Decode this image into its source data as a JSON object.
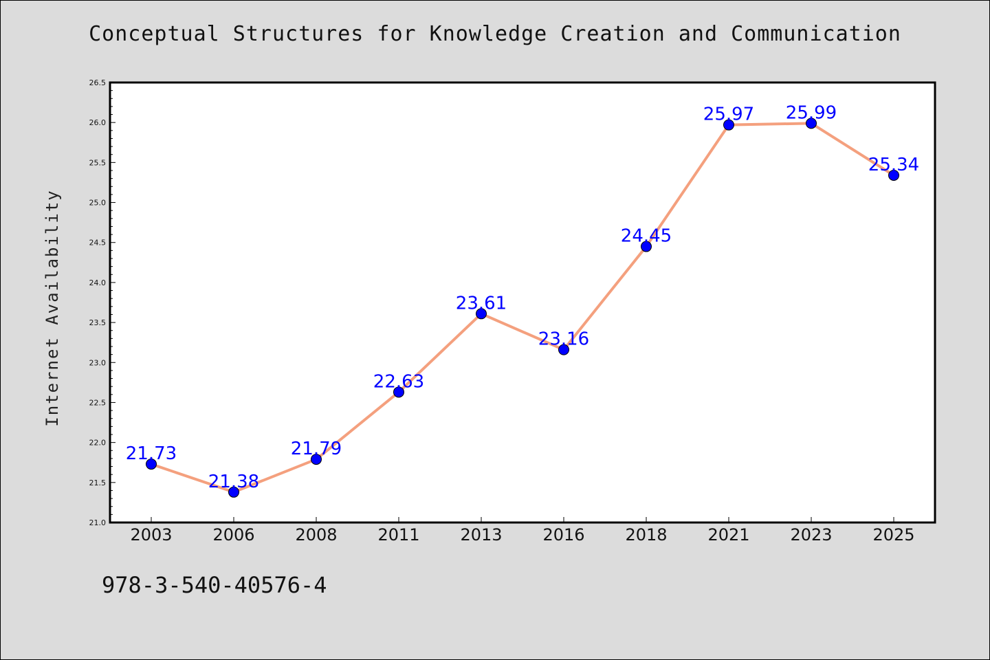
{
  "chart_data": {
    "type": "line",
    "title": "Conceptual Structures for Knowledge Creation and Communication",
    "xlabel": "",
    "ylabel": "Internet Availability",
    "categories": [
      "2003",
      "2006",
      "2008",
      "2011",
      "2013",
      "2016",
      "2018",
      "2021",
      "2023",
      "2025"
    ],
    "series": [
      {
        "values": [
          21.73,
          21.38,
          21.79,
          22.63,
          23.61,
          23.16,
          24.45,
          25.97,
          25.99,
          25.34
        ],
        "labels": [
          "21.73",
          "21.38",
          "21.79",
          "22.63",
          "23.61",
          "23.16",
          "24.45",
          "25.97",
          "25.99",
          "25.34"
        ],
        "line_color": "#f4a07e",
        "marker_color": "#0000ff"
      }
    ],
    "ylim": [
      21.0,
      26.5
    ],
    "yticks": [
      "21.0",
      "21.5",
      "22.0",
      "22.5",
      "23.0",
      "23.5",
      "24.0",
      "24.5",
      "25.0",
      "25.5",
      "26.0",
      "26.5"
    ],
    "grid": false,
    "label_color": "#0000ff"
  },
  "footer_text": "978-3-540-40576-4",
  "colors": {
    "background": "#dcdcdc",
    "plot_background": "#ffffff"
  }
}
